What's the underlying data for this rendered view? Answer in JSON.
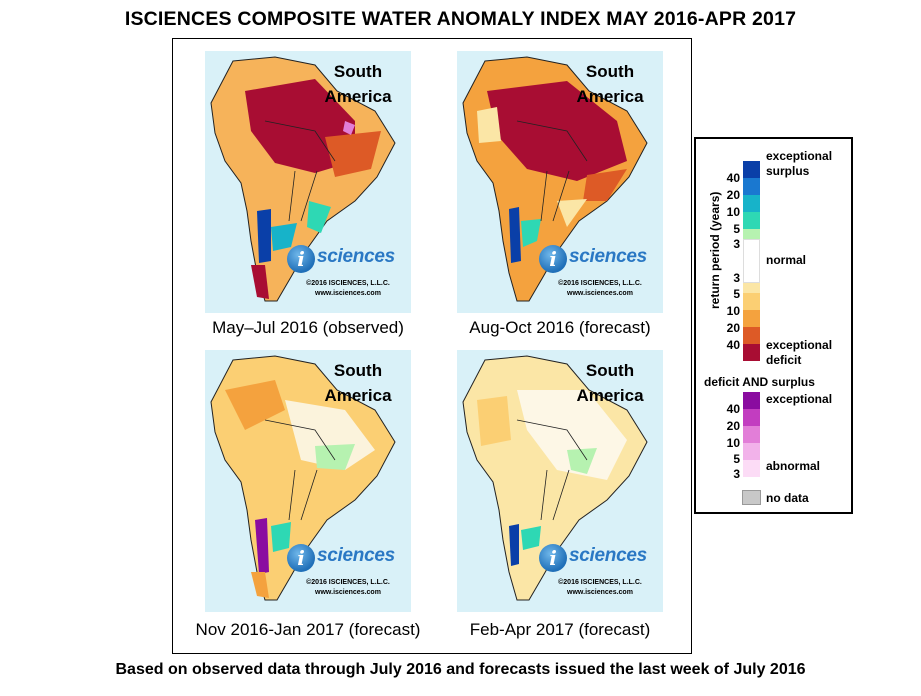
{
  "title": "ISCIENCES COMPOSITE WATER ANOMALY INDEX MAY 2016-APR 2017",
  "footer": "Based on observed data through July 2016 and forecasts issued the last week of July 2016",
  "panel_common": {
    "region_line1": "South",
    "region_line2": "America",
    "logo_letter": "i",
    "logo_word": "sciences",
    "copyright": "©2016 ISCIENCES, L.L.C.",
    "website": "www.isciences.com"
  },
  "panels": [
    {
      "caption": "May–Jul 2016 (observed)",
      "dominant": "deficit-severe"
    },
    {
      "caption": "Aug-Oct 2016 (forecast)",
      "dominant": "deficit-severe"
    },
    {
      "caption": "Nov 2016-Jan 2017 (forecast)",
      "dominant": "deficit-moderate"
    },
    {
      "caption": "Feb-Apr 2017 (forecast)",
      "dominant": "deficit-mild"
    }
  ],
  "legend": {
    "axis_label": "return period (years)",
    "surplus_label_1": "exceptional",
    "surplus_label_2": "surplus",
    "normal_label": "normal",
    "deficit_label_1": "exceptional",
    "deficit_label_2": "deficit",
    "both_heading": "deficit AND surplus",
    "both_top_label": "exceptional",
    "both_bottom_label": "abnormal",
    "nodata_label": "no data",
    "surplus_ticks": [
      "40",
      "20",
      "10",
      "5",
      "3"
    ],
    "deficit_ticks": [
      "3",
      "5",
      "10",
      "20",
      "40"
    ],
    "both_ticks": [
      "40",
      "20",
      "10",
      "5",
      "3"
    ],
    "colors": {
      "surplus": [
        "#0a3fa8",
        "#1a78d0",
        "#17b3c9",
        "#2ed8b4",
        "#b6f2b0"
      ],
      "normal": "#ffffff",
      "deficit": [
        "#fbe6a6",
        "#fbcf73",
        "#f4a23e",
        "#dd5a26",
        "#a80d33"
      ],
      "both": [
        "#8a0ca0",
        "#c23dc0",
        "#e27ed8",
        "#f2b2ea",
        "#fcdcf6"
      ],
      "nodata": "#c8c8c8",
      "ocean": "#d9f1f8"
    }
  }
}
